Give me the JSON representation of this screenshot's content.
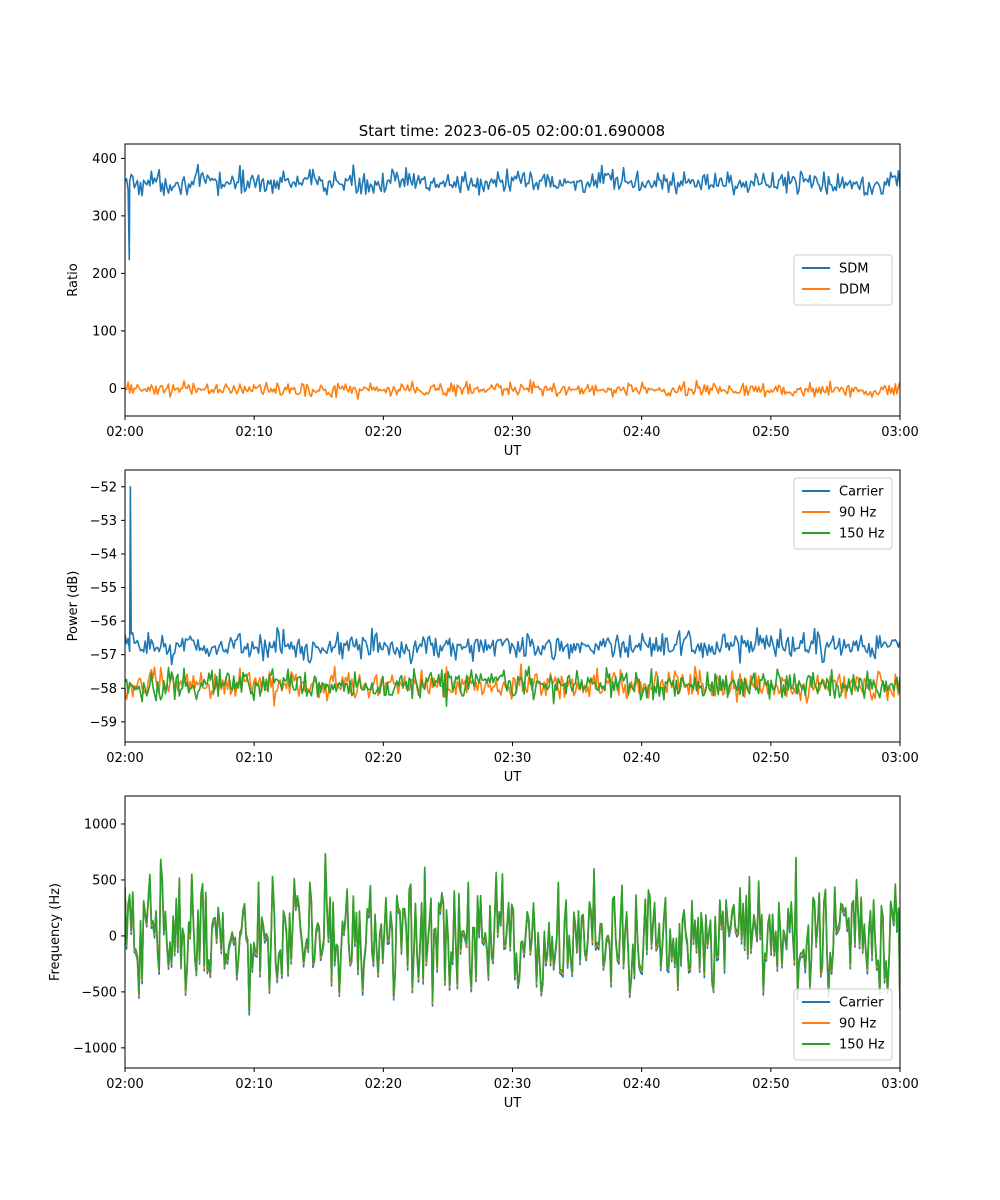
{
  "figure": {
    "title": "Start time: 2023-06-05 02:00:01.690008"
  },
  "colors": {
    "blue": "#1f77b4",
    "orange": "#ff7f0e",
    "green": "#2ca02c"
  },
  "chart_data": [
    {
      "type": "line",
      "xlabel": "UT",
      "ylabel": "Ratio",
      "xlim": [
        "02:00",
        "03:00"
      ],
      "xticks": [
        "02:00",
        "02:10",
        "02:20",
        "02:30",
        "02:40",
        "02:50",
        "03:00"
      ],
      "ylim": [
        -48,
        425
      ],
      "yticks": [
        0,
        100,
        200,
        300,
        400
      ],
      "legend": "center-right",
      "series": [
        {
          "name": "SDM",
          "color": "#1f77b4",
          "kind": "ratio",
          "base": 358,
          "noise": 15,
          "start": 360,
          "spike": {
            "time": "02:00:20",
            "value": 224
          }
        },
        {
          "name": "DDM",
          "color": "#ff7f0e",
          "kind": "ratio",
          "base": -2,
          "noise": 9,
          "start": 0
        }
      ]
    },
    {
      "type": "line",
      "xlabel": "UT",
      "ylabel": "Power (dB)",
      "xlim": [
        "02:00",
        "03:00"
      ],
      "xticks": [
        "02:00",
        "02:10",
        "02:20",
        "02:30",
        "02:40",
        "02:50",
        "03:00"
      ],
      "ylim": [
        -59.6,
        -51.5
      ],
      "yticks": [
        -59,
        -58,
        -57,
        -56,
        -55,
        -54,
        -53,
        -52
      ],
      "legend": "top-right",
      "series": [
        {
          "name": "Carrier",
          "color": "#1f77b4",
          "kind": "power",
          "base": -56.75,
          "noise": 0.28,
          "start": -56.4,
          "spike": {
            "time": "02:00:25",
            "value": -52
          }
        },
        {
          "name": "90 Hz",
          "color": "#ff7f0e",
          "kind": "power",
          "base": -57.9,
          "noise": 0.3,
          "start": -58.0
        },
        {
          "name": "150 Hz",
          "color": "#2ca02c",
          "kind": "power",
          "base": -57.9,
          "noise": 0.32,
          "start": -57.8
        }
      ]
    },
    {
      "type": "line",
      "xlabel": "UT",
      "ylabel": "Frequency (Hz)",
      "xlim": [
        "02:00",
        "03:00"
      ],
      "xticks": [
        "02:00",
        "02:10",
        "02:20",
        "02:30",
        "02:40",
        "02:50",
        "03:00"
      ],
      "ylim": [
        -1180,
        1250
      ],
      "yticks": [
        -1000,
        -500,
        0,
        500,
        1000
      ],
      "legend": "bottom-right",
      "series": [
        {
          "name": "Carrier",
          "color": "#1f77b4",
          "kind": "freq",
          "base": 0,
          "noise": 380,
          "offset": -40
        },
        {
          "name": "90 Hz",
          "color": "#ff7f0e",
          "kind": "freq",
          "base": 0,
          "noise": 380,
          "offset": -15
        },
        {
          "name": "150 Hz",
          "color": "#2ca02c",
          "kind": "freq",
          "base": 0,
          "noise": 380,
          "offset": 0
        }
      ]
    }
  ]
}
